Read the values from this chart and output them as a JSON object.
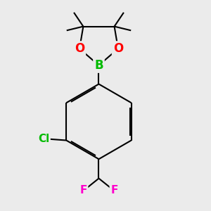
{
  "background_color": "#EBEBEB",
  "bond_color": "#000000",
  "bond_width": 1.5,
  "atom_colors": {
    "B": "#00BB00",
    "O": "#FF0000",
    "Cl": "#00BB00",
    "F": "#FF00CC",
    "C": "#000000"
  },
  "atom_fontsizes": {
    "B": 12,
    "O": 12,
    "Cl": 11,
    "F": 11
  },
  "figsize": [
    3.0,
    3.0
  ],
  "dpi": 100,
  "xlim": [
    3.0,
    7.5
  ],
  "ylim": [
    1.2,
    9.0
  ]
}
